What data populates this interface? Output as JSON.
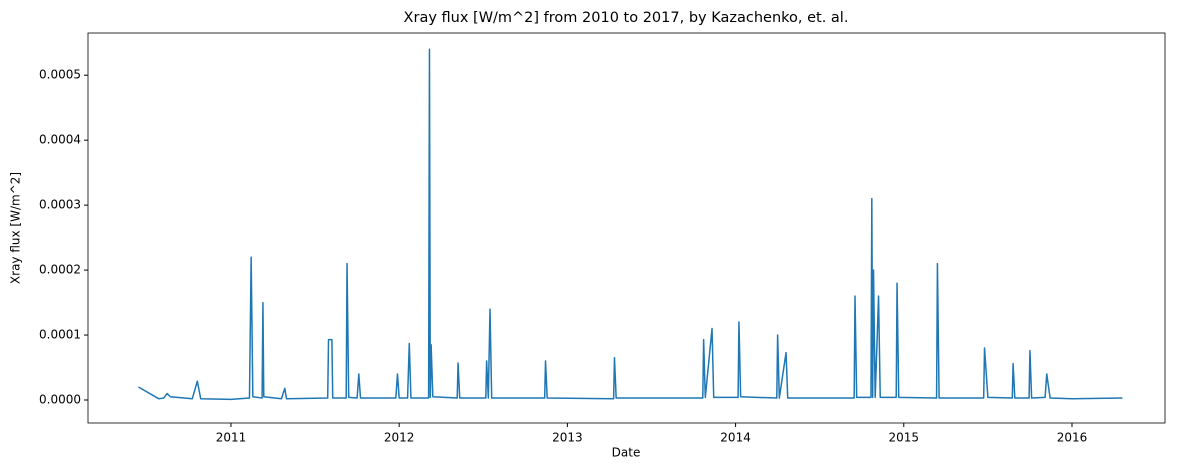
{
  "chart_data": {
    "type": "line",
    "title": "Xray flux [W/m^2] from 2010 to 2017, by Kazachenko, et. al.",
    "x_label": "Date",
    "y_label": "Xray flux [W/m^2]",
    "x": [
      2010.45,
      2010.57,
      2010.6,
      2010.62,
      2010.64,
      2010.77,
      2010.8,
      2010.82,
      2011.0,
      2011.11,
      2011.12,
      2011.13,
      2011.185,
      2011.19,
      2011.195,
      2011.3,
      2011.32,
      2011.33,
      2011.575,
      2011.58,
      2011.6,
      2011.605,
      2011.685,
      2011.69,
      2011.7,
      2011.75,
      2011.76,
      2011.77,
      2011.98,
      2011.99,
      2012.0,
      2012.05,
      2012.06,
      2012.07,
      2012.175,
      2012.18,
      2012.185,
      2012.19,
      2012.2,
      2012.345,
      2012.35,
      2012.36,
      2012.515,
      2012.52,
      2012.53,
      2012.54,
      2012.55,
      2012.865,
      2012.87,
      2012.88,
      2013.275,
      2013.28,
      2013.29,
      2013.805,
      2013.81,
      2013.82,
      2013.86,
      2013.87,
      2014.015,
      2014.02,
      2014.03,
      2014.245,
      2014.25,
      2014.26,
      2014.3,
      2014.31,
      2014.705,
      2014.71,
      2014.72,
      2014.805,
      2014.81,
      2014.815,
      2014.82,
      2014.83,
      2014.85,
      2014.86,
      2014.955,
      2014.96,
      2014.97,
      2015.195,
      2015.2,
      2015.21,
      2015.475,
      2015.48,
      2015.5,
      2015.645,
      2015.65,
      2015.66,
      2015.745,
      2015.75,
      2015.76,
      2015.84,
      2015.85,
      2015.87,
      2016.0,
      2016.3
    ],
    "series": [
      {
        "color": "#1f77b4",
        "values": [
          2e-05,
          2e-06,
          3e-06,
          1e-05,
          5e-06,
          2e-06,
          2.9e-05,
          2e-06,
          1e-06,
          3e-06,
          0.00022,
          5e-06,
          3e-06,
          0.00015,
          5e-06,
          2e-06,
          1.8e-05,
          2e-06,
          3e-06,
          9.3e-05,
          9.3e-05,
          3e-06,
          3e-06,
          0.00021,
          4e-06,
          3e-06,
          4e-05,
          3e-06,
          3e-06,
          4e-05,
          3e-06,
          3e-06,
          8.7e-05,
          3e-06,
          3e-06,
          0.00054,
          4e-06,
          8.5e-05,
          5e-06,
          3e-06,
          5.7e-05,
          3e-06,
          3e-06,
          6e-05,
          3e-06,
          0.00014,
          3e-06,
          3e-06,
          6e-05,
          3e-06,
          2e-06,
          6.5e-05,
          3e-06,
          3e-06,
          9.3e-05,
          4e-06,
          0.00011,
          4e-06,
          4e-06,
          0.00012,
          5e-06,
          3e-06,
          0.0001,
          3e-06,
          7.3e-05,
          3e-06,
          3e-06,
          0.00016,
          4e-06,
          4e-06,
          0.00031,
          4e-06,
          0.0002,
          4e-06,
          0.00016,
          4e-06,
          4e-06,
          0.00018,
          4e-06,
          3e-06,
          0.00021,
          3e-06,
          3e-06,
          8e-05,
          4e-06,
          3e-06,
          5.6e-05,
          3e-06,
          3e-06,
          7.6e-05,
          3e-06,
          4e-06,
          4e-05,
          3e-06,
          2e-06,
          3e-06
        ]
      }
    ],
    "xlim": [
      2010.15,
      2016.553
    ],
    "xticks": [
      2011,
      2012,
      2013,
      2014,
      2015,
      2016
    ],
    "ylim": [
      -3.54e-05,
      0.000565
    ],
    "yticks": [
      {
        "value": 0,
        "label": "0.0000"
      },
      {
        "value": 0.0001,
        "label": "0.0001"
      },
      {
        "value": 0.0002,
        "label": "0.0002"
      },
      {
        "value": 0.0003,
        "label": "0.0003"
      },
      {
        "value": 0.0004,
        "label": "0.0004"
      },
      {
        "value": 0.0005,
        "label": "0.0005"
      }
    ]
  }
}
